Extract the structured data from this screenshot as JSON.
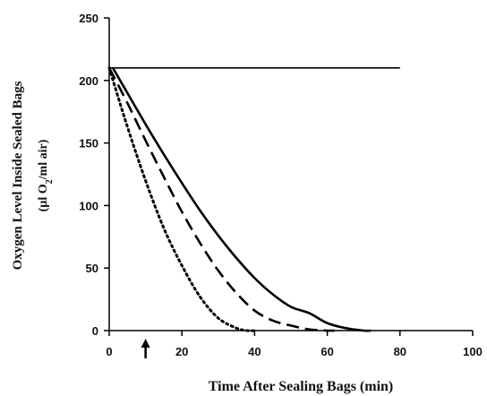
{
  "chart_data": {
    "type": "line",
    "xlabel": "Time After Sealing Bags (min)",
    "ylabel_line1": "Oxygen Level Inside Sealed Bags",
    "ylabel_line2_prefix": "(µl O",
    "ylabel_line2_sub": "2",
    "ylabel_line2_suffix": "/ml air)",
    "xlim": [
      0,
      100
    ],
    "ylim": [
      0,
      250
    ],
    "x_ticks": [
      "0",
      "20",
      "40",
      "60",
      "80",
      "100"
    ],
    "y_ticks": [
      "0",
      "50",
      "100",
      "150",
      "200",
      "250"
    ],
    "grid": false,
    "legend": "none",
    "arrow_marker_x": 10,
    "series": [
      {
        "style": "solid-thin",
        "x": [
          0,
          80
        ],
        "y": [
          210,
          210
        ]
      },
      {
        "style": "solid-thick",
        "x": [
          1,
          5,
          10,
          15,
          20,
          25,
          30,
          35,
          40,
          45,
          50,
          55,
          60,
          65,
          70,
          72
        ],
        "y": [
          210,
          190,
          165,
          141,
          118,
          96,
          76,
          58,
          42,
          29,
          19,
          14,
          6,
          2,
          0,
          0
        ]
      },
      {
        "style": "dashed",
        "x": [
          0,
          5,
          10,
          15,
          20,
          25,
          30,
          35,
          40,
          45,
          50,
          55,
          60,
          62
        ],
        "y": [
          210,
          182,
          152,
          123,
          95,
          70,
          48,
          30,
          16,
          8,
          4,
          1,
          0,
          0
        ]
      },
      {
        "style": "dotted",
        "x": [
          0,
          5,
          10,
          15,
          20,
          25,
          30,
          35,
          38,
          40
        ],
        "y": [
          210,
          163,
          120,
          82,
          52,
          27,
          10,
          2,
          0,
          0
        ]
      }
    ]
  }
}
